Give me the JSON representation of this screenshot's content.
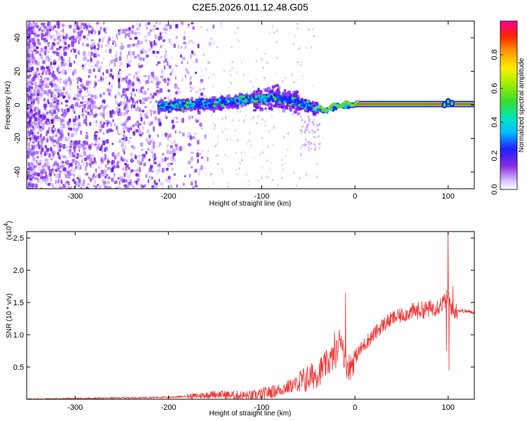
{
  "title": "C2E5.2026.011.12.48.G05",
  "chart_data": [
    {
      "type": "heatmap",
      "xlabel": "Height of straight line (km)",
      "ylabel": "Frequency (Hz)",
      "xlim": [
        -352,
        128
      ],
      "ylim": [
        -50,
        50
      ],
      "xticks": [
        -300,
        -200,
        -100,
        0,
        100
      ],
      "yticks": [
        -40,
        -20,
        0,
        20,
        40
      ],
      "colorbar": {
        "label": "Normalized spectral amplitude",
        "range": [
          0,
          1
        ],
        "ticks": [
          "0.0",
          "0.2",
          "0.4",
          "0.6",
          "0.8"
        ],
        "tick_values": [
          0.0,
          0.2,
          0.4,
          0.6,
          0.8
        ]
      },
      "ridge": {
        "description_values": [
          {
            "x": -210,
            "y": 0
          },
          {
            "x": -150,
            "y": 2
          },
          {
            "x": -100,
            "y": 5
          },
          {
            "x": -75,
            "y": 4
          },
          {
            "x": -50,
            "y": 0
          },
          {
            "x": -35,
            "y": -3
          },
          {
            "x": -20,
            "y": 0
          },
          {
            "x": 0,
            "y": 1
          },
          {
            "x": 128,
            "y": 0
          }
        ]
      }
    },
    {
      "type": "line",
      "xlabel": "Height of straight line (km)",
      "ylabel": "SNR (10 * v/v)",
      "y_multiplier": "(x10",
      "y_multiplier_exp": "4",
      "y_multiplier_close": ")",
      "xlim": [
        -352,
        128
      ],
      "ylim": [
        0,
        2.6
      ],
      "xticks": [
        -300,
        -200,
        -100,
        0,
        100
      ],
      "yticks": [
        "0.5",
        "1.0",
        "1.5",
        "2.0",
        "2.5"
      ],
      "ytick_values": [
        0.5,
        1.0,
        1.5,
        2.0,
        2.5
      ],
      "color": "#ef3434",
      "series": [
        {
          "x": [
            -352,
            -300,
            -250,
            -200,
            -170,
            -150,
            -130,
            -110,
            -100,
            -80,
            -60,
            -40,
            -30,
            -20,
            -15,
            -10,
            -5,
            0,
            10,
            20,
            30,
            40,
            50,
            60,
            70,
            80,
            90,
            95,
            100,
            105,
            110,
            120,
            128
          ],
          "values": [
            0.0,
            0.01,
            0.02,
            0.03,
            0.05,
            0.08,
            0.06,
            0.05,
            0.08,
            0.15,
            0.25,
            0.4,
            0.55,
            0.7,
            1.0,
            0.55,
            0.5,
            0.65,
            0.85,
            1.0,
            1.15,
            1.25,
            1.3,
            1.35,
            1.38,
            1.4,
            1.45,
            1.5,
            1.6,
            1.35,
            1.38,
            1.36,
            1.35
          ]
        }
      ],
      "spikes": [
        {
          "x": -10,
          "y": 1.65
        },
        {
          "x": -22,
          "y": 1.05
        },
        {
          "x": 100,
          "y": 2.6
        },
        {
          "x": 101,
          "y": 0.45
        },
        {
          "x": 105,
          "y": 1.75
        },
        {
          "x": 98,
          "y": 0.75
        }
      ]
    }
  ]
}
